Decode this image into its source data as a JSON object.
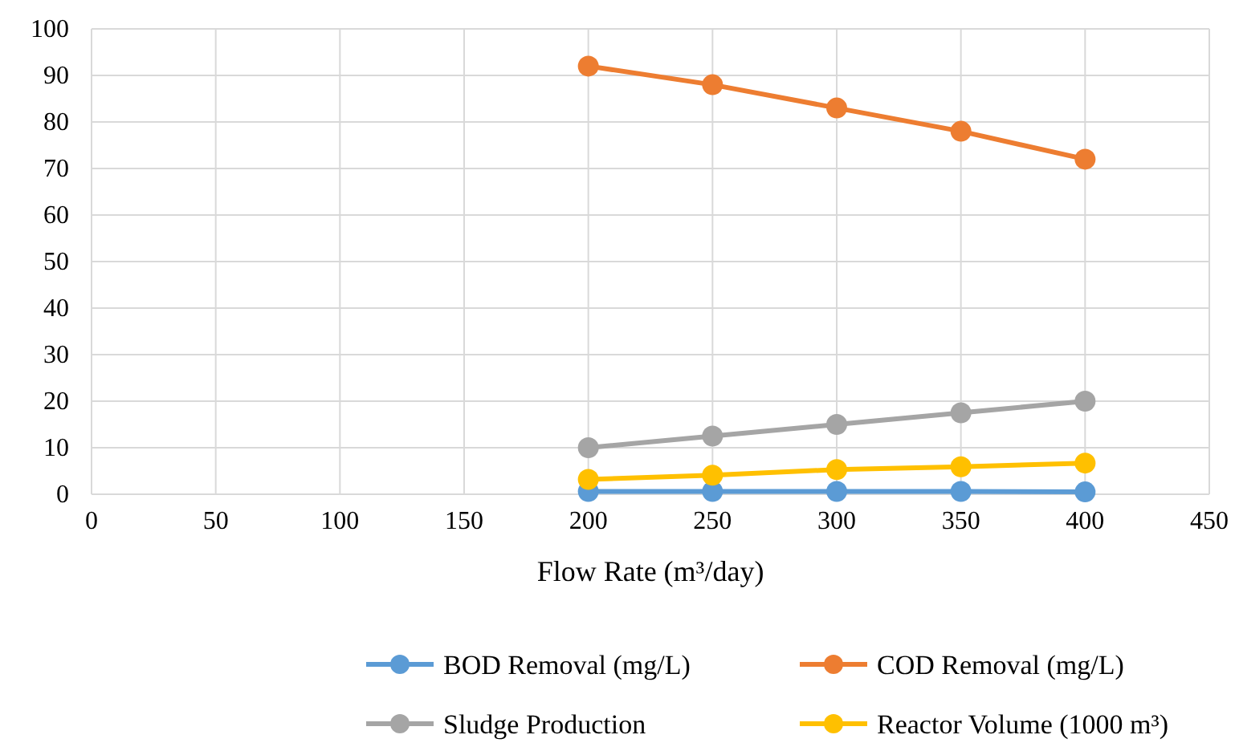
{
  "chart_data": {
    "type": "line",
    "xlabel": "Flow Rate (m³/day)",
    "x": [
      200,
      250,
      300,
      350,
      400
    ],
    "xlim": [
      0,
      450
    ],
    "xticks": [
      0,
      50,
      100,
      150,
      200,
      250,
      300,
      350,
      400,
      450
    ],
    "ylim": [
      0,
      100
    ],
    "yticks": [
      0,
      10,
      20,
      30,
      40,
      50,
      60,
      70,
      80,
      90,
      100
    ],
    "grid": true,
    "legend": "bottom",
    "marker": "circle",
    "line_style": "solid",
    "series": [
      {
        "name": "BOD Removal (mg/L)",
        "color": "#5b9bd5",
        "values": [
          0.6,
          0.6,
          0.6,
          0.6,
          0.5
        ]
      },
      {
        "name": "COD Removal (mg/L)",
        "color": "#ed7d31",
        "values": [
          92,
          88,
          83,
          78,
          72
        ]
      },
      {
        "name": "Sludge Production",
        "color": "#a5a5a5",
        "values": [
          10,
          12.5,
          15,
          17.5,
          20
        ]
      },
      {
        "name": "Reactor Volume (1000 m³)",
        "color": "#ffc000",
        "values": [
          3.2,
          4.1,
          5.3,
          5.9,
          6.7
        ]
      }
    ]
  }
}
